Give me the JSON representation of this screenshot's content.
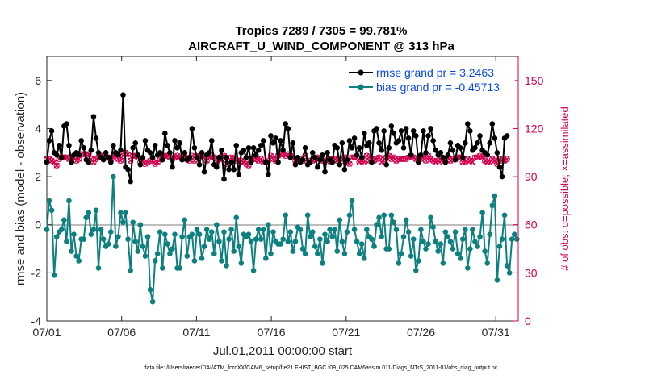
{
  "chart_data": {
    "type": "line",
    "title": "Tropics 7289 / 7305 = 99.781%",
    "subtitle": "AIRCRAFT_U_WIND_COMPONENT @ 313 hPa",
    "xlabel": "Jul.01,2011 00:00:00 start",
    "ylabel": "rmse and bias (model - observation)",
    "ylabel_right": "# of obs: o=possible; ×=assimilated",
    "xlim": [
      0,
      31.5
    ],
    "ylim": [
      -4,
      7
    ],
    "ylim_right": [
      0,
      165
    ],
    "x_ticks": [
      0,
      5,
      10,
      15,
      20,
      25,
      30
    ],
    "x_tick_labels": [
      "07/01",
      "07/06",
      "07/11",
      "07/16",
      "07/21",
      "07/26",
      "07/31"
    ],
    "y_ticks": [
      -4,
      -2,
      0,
      2,
      4,
      6
    ],
    "y_tick_labels": [
      "-4",
      "-2",
      "0",
      "2",
      "4",
      "6"
    ],
    "y_ticks_right": [
      0,
      30,
      60,
      90,
      120,
      150
    ],
    "y_tick_labels_right": [
      "0",
      "30",
      "60",
      "90",
      "120",
      "150"
    ],
    "legend": [
      {
        "label": "rmse grand pr = 3.2463",
        "color": "#000000"
      },
      {
        "label": "bias grand pr = -0.45713",
        "color": "#0f8080"
      }
    ],
    "legend_position": "top-right",
    "footnote": "data file: /Users/raeder/DAI/ATM_forcXX/CAM6_setup/f.e21.FHIST_BGC.f09_025.CAM6assim.011/Diags_NTrS_2011-07/obs_diag_output.nc",
    "series": [
      {
        "name": "rmse",
        "color": "#000000",
        "values": [
          2.6,
          3.5,
          3.9,
          3.0,
          2.9,
          3.3,
          2.8,
          4.1,
          4.2,
          3.3,
          2.6,
          2.9,
          3.0,
          2.9,
          3.5,
          3.2,
          2.7,
          2.6,
          3.1,
          4.5,
          3.6,
          3.0,
          2.8,
          2.7,
          3.0,
          2.8,
          2.6,
          3.3,
          3.0,
          2.9,
          3.1,
          5.4,
          2.4,
          2.3,
          1.8,
          3.2,
          3.4,
          2.9,
          2.5,
          2.8,
          3.5,
          3.1,
          3.0,
          2.8,
          3.3,
          2.9,
          3.0,
          2.7,
          3.8,
          3.3,
          3.0,
          2.4,
          3.5,
          3.2,
          3.4,
          2.7,
          3.0,
          2.7,
          2.8,
          4.0,
          3.2,
          2.8,
          2.5,
          3.0,
          2.2,
          2.9,
          3.0,
          3.5,
          2.5,
          2.4,
          2.8,
          3.1,
          1.9,
          2.8,
          2.3,
          2.6,
          2.3,
          3.3,
          2.1,
          3.0,
          3.1,
          2.8,
          3.2,
          2.6,
          3.2,
          2.9,
          3.1,
          3.3,
          3.5,
          2.6,
          2.1,
          3.7,
          3.4,
          3.6,
          2.6,
          3.5,
          3.1,
          4.2,
          4.0,
          2.8,
          3.4,
          2.5,
          2.8,
          2.6,
          2.7,
          3.2,
          2.5,
          2.6,
          3.0,
          2.8,
          2.4,
          2.7,
          2.9,
          2.2,
          3.0,
          2.7,
          2.6,
          3.3,
          3.2,
          2.5,
          3.4,
          2.3,
          2.7,
          3.5,
          3.2,
          3.6,
          2.9,
          3.2,
          2.8,
          3.8,
          3.3,
          3.4,
          2.6,
          3.9,
          4.0,
          3.4,
          3.1,
          3.9,
          2.5,
          3.2,
          4.1,
          3.8,
          3.4,
          3.5,
          3.9,
          3.2,
          4.0,
          3.6,
          2.9,
          3.9,
          3.7,
          2.6,
          2.9,
          3.9,
          3.0,
          3.7,
          4.0,
          3.5,
          3.1,
          2.9,
          3.0,
          2.8,
          2.6,
          2.9,
          3.4,
          3.1,
          2.7,
          3.3,
          3.2,
          2.8,
          3.4,
          4.2,
          3.9,
          3.1,
          3.2,
          3.4,
          3.7,
          3.1,
          3.0,
          2.9,
          3.4,
          4.2,
          3.6,
          3.0,
          2.4,
          2.0,
          3.6,
          3.7
        ]
      },
      {
        "name": "bias",
        "color": "#0f8080",
        "values": [
          -0.2,
          1.0,
          0.6,
          -2.1,
          -0.5,
          -0.3,
          -0.2,
          0.2,
          -0.7,
          1.0,
          -1.1,
          -0.4,
          -1.3,
          -1.5,
          -0.6,
          -0.6,
          0.3,
          0.5,
          -0.4,
          -0.2,
          0.6,
          -1.8,
          -0.2,
          -0.6,
          -0.9,
          -0.8,
          -0.3,
          2.0,
          -0.9,
          -0.5,
          0.5,
          0.1,
          0.5,
          -0.6,
          -1.9,
          0.1,
          -0.7,
          -1.1,
          0.0,
          -0.9,
          -1.3,
          -0.5,
          -2.7,
          -3.2,
          -1.5,
          -1.2,
          -0.3,
          -1.8,
          -0.4,
          -0.8,
          -1.2,
          -1.0,
          -0.4,
          -1.8,
          -1.8,
          -0.5,
          0.2,
          -1.3,
          -0.5,
          -0.4,
          -1.5,
          -0.2,
          -0.4,
          -1.4,
          -0.9,
          -0.2,
          -0.6,
          -0.3,
          -1.2,
          0.0,
          -0.7,
          -1.5,
          -0.3,
          -1.7,
          -0.6,
          -0.2,
          -1.1,
          0.3,
          -0.9,
          -1.6,
          -0.4,
          -0.5,
          -0.4,
          -0.7,
          -1.9,
          -0.6,
          -0.2,
          -0.6,
          -0.2,
          -1.4,
          0.0,
          -1.2,
          -0.3,
          -0.7,
          -0.8,
          -0.8,
          -0.6,
          0.4,
          -0.7,
          -0.3,
          -1.1,
          -0.7,
          -0.1,
          -0.2,
          -1.0,
          -1.2,
          0.4,
          -0.5,
          -0.3,
          -0.9,
          -1.2,
          -0.6,
          -1.6,
          -0.4,
          -0.7,
          -0.2,
          -0.5,
          -0.2,
          -1.1,
          0.2,
          -0.7,
          -1.2,
          -0.3,
          0.4,
          1.0,
          -0.2,
          -0.7,
          -1.2,
          -0.8,
          -1.4,
          -0.2,
          -0.5,
          -0.6,
          -0.9,
          0.0,
          0.3,
          -0.5,
          0.4,
          -1.0,
          -1.0,
          0.4,
          0.1,
          -0.2,
          -1.6,
          -1.2,
          -0.5,
          0.2,
          -0.3,
          -1.3,
          -0.6,
          -1.9,
          -1.5,
          -0.2,
          -0.7,
          -1.0,
          -0.8,
          0.3,
          -0.1,
          -0.7,
          -1.1,
          -0.8,
          -1.6,
          -0.3,
          -0.5,
          -0.7,
          -1.0,
          -0.3,
          -1.2,
          -1.4,
          -0.6,
          -0.2,
          -1.8,
          -1.0,
          -0.2,
          -0.7,
          -0.9,
          -0.5,
          0.5,
          -1.1,
          -1.6,
          -0.4,
          0.8,
          1.2,
          -2.3,
          -0.9,
          -0.6,
          0.4,
          -1.7,
          -2.0,
          -0.6,
          -0.4,
          -0.6
        ]
      }
    ],
    "obs_possible_y2": [
      101,
      101,
      100,
      99,
      97,
      101,
      102,
      102,
      102,
      101,
      102,
      102,
      100,
      101,
      104,
      104,
      104,
      104,
      101,
      99,
      101,
      102,
      103,
      103,
      102,
      102,
      100,
      102,
      104,
      101,
      100,
      103,
      105,
      104,
      100,
      103,
      103,
      102,
      99,
      100,
      98,
      99,
      100,
      100,
      98,
      99,
      101,
      103,
      103,
      103,
      102,
      101,
      102,
      103,
      102,
      101,
      103,
      101,
      100,
      103,
      100,
      102,
      103,
      103,
      102,
      100,
      102,
      103,
      102,
      99,
      101,
      101,
      103,
      98,
      99,
      102,
      101,
      100,
      100,
      100,
      99,
      98,
      97,
      100,
      101,
      101,
      100,
      101,
      99,
      99,
      100,
      103,
      101,
      100,
      103,
      104,
      104,
      103,
      104,
      103,
      102,
      100,
      100,
      101,
      100,
      103,
      99,
      100,
      100,
      101,
      102,
      101,
      100,
      100,
      99,
      101,
      101,
      101,
      100,
      101,
      100,
      102,
      99,
      98,
      102,
      102,
      102,
      99,
      100,
      99,
      103,
      100,
      101,
      100,
      101,
      102,
      99,
      101,
      102,
      103,
      101,
      102,
      100,
      101,
      101,
      101,
      101,
      102,
      103,
      102,
      101,
      100,
      101,
      102,
      100,
      103,
      101,
      100,
      99,
      100,
      101,
      99,
      101,
      102,
      100,
      101,
      101,
      102,
      102,
      99,
      99,
      101,
      100,
      99,
      102,
      102,
      103,
      102,
      100,
      99,
      99,
      101,
      100,
      98,
      101,
      100,
      100,
      101
    ],
    "obs_assimilated_y2": [
      101,
      101,
      100,
      99,
      97,
      101,
      102,
      102,
      102,
      101,
      102,
      102,
      100,
      101,
      104,
      104,
      104,
      104,
      101,
      99,
      101,
      102,
      103,
      103,
      102,
      102,
      100,
      102,
      104,
      101,
      100,
      103,
      105,
      104,
      100,
      103,
      103,
      102,
      99,
      100,
      98,
      99,
      100,
      100,
      98,
      99,
      101,
      103,
      103,
      103,
      102,
      101,
      102,
      103,
      102,
      101,
      103,
      101,
      100,
      103,
      100,
      102,
      103,
      103,
      102,
      100,
      102,
      103,
      102,
      99,
      101,
      101,
      103,
      98,
      99,
      102,
      101,
      100,
      100,
      100,
      99,
      98,
      97,
      100,
      101,
      101,
      100,
      101,
      99,
      99,
      100,
      103,
      101,
      100,
      103,
      104,
      104,
      103,
      104,
      103,
      102,
      100,
      100,
      101,
      100,
      103,
      99,
      100,
      100,
      101,
      102,
      101,
      100,
      100,
      99,
      101,
      101,
      101,
      100,
      101,
      100,
      102,
      99,
      98,
      102,
      102,
      102,
      99,
      100,
      99,
      103,
      100,
      101,
      100,
      101,
      102,
      99,
      101,
      102,
      103,
      101,
      102,
      100,
      101,
      101,
      101,
      101,
      102,
      103,
      102,
      101,
      100,
      101,
      102,
      100,
      103,
      101,
      100,
      99,
      100,
      101,
      99,
      101,
      102,
      100,
      101,
      101,
      102,
      102,
      99,
      99,
      101,
      100,
      99,
      102,
      102,
      103,
      102,
      100,
      99,
      99,
      101,
      100,
      98,
      101,
      100,
      100,
      101
    ]
  }
}
